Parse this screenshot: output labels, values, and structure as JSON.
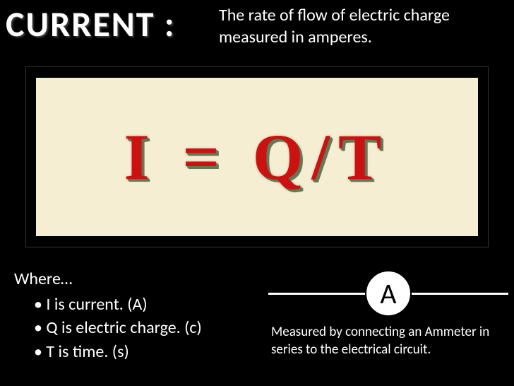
{
  "title": "CURRENT :",
  "definition": "The rate of flow of electric charge measured in amperes.",
  "formula": {
    "text": "I = Q/T",
    "text_color": "#cc1111",
    "bg_color": "#f5eed3",
    "shadow_color": "#667755",
    "fontsize": 92
  },
  "where": {
    "label": "Where…",
    "items": [
      "I is current. (A)",
      "Q is electric charge. (c)",
      "T is time. (s)"
    ]
  },
  "ammeter": {
    "symbol": "A",
    "description": "Measured by connecting an Ammeter in series to the electrical circuit.",
    "circle_bg": "#ffffff",
    "circle_text_color": "#000000",
    "line_color": "#ffffff"
  },
  "slide_bg": "#000000"
}
